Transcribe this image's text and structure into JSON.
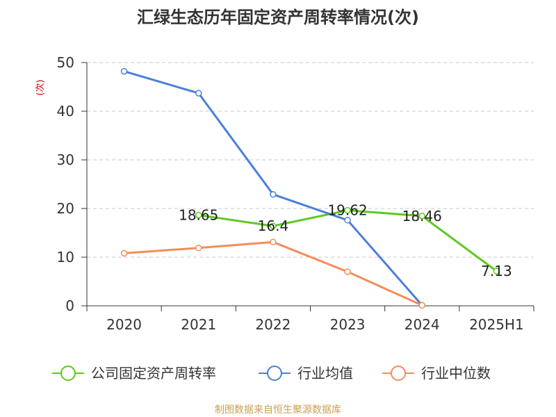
{
  "chart_data": {
    "type": "line",
    "title": "汇绿生态历年固定资产周转率情况(次)",
    "ylabel": "(次)",
    "xlabel": "",
    "categories": [
      "2020",
      "2021",
      "2022",
      "2023",
      "2024",
      "2025H1"
    ],
    "ylim": [
      0,
      50
    ],
    "yticks": [
      0,
      10,
      20,
      30,
      40,
      50
    ],
    "grid": true,
    "legend_position": "bottom",
    "series": [
      {
        "name": "公司固定资产周转率",
        "color": "#5cc81e",
        "values": [
          null,
          18.65,
          16.4,
          19.62,
          18.46,
          7.13
        ],
        "labels": [
          "",
          "18.65",
          "16.4",
          "19.62",
          "18.46",
          "7.13"
        ]
      },
      {
        "name": "行业均值",
        "color": "#4a7fd8",
        "values": [
          48.2,
          43.7,
          22.9,
          17.6,
          0.1,
          null
        ]
      },
      {
        "name": "行业中位数",
        "color": "#f58c5a",
        "values": [
          10.8,
          11.9,
          13.1,
          7.0,
          0.1,
          null
        ]
      }
    ]
  },
  "footer": {
    "source": "制图数据来自恒生聚源数据库"
  }
}
